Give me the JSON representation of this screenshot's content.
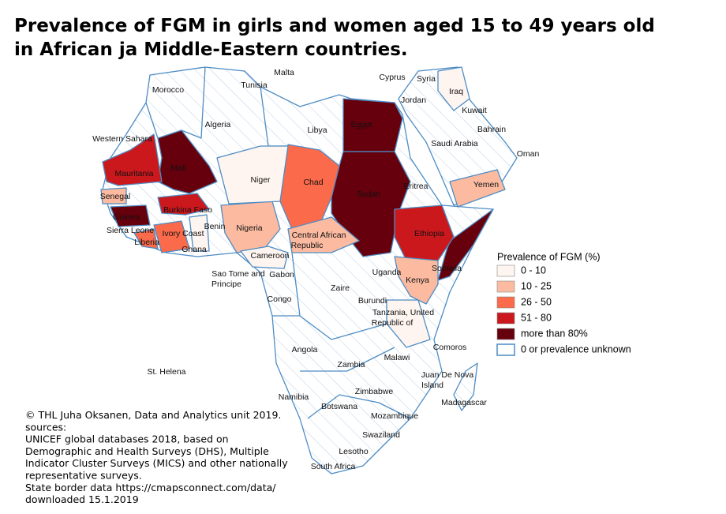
{
  "title": [
    "Prevalence of FGM in girls and women aged 15 to 49  years old",
    "in African  ja Middle-Eastern countries."
  ],
  "labels": [
    "Malta",
    "Tunisia",
    "Morocco",
    "Algeria",
    "Libya",
    "Cyprus",
    "Syria",
    "Iraq",
    "Jordan",
    "Kuwait",
    "Egypt",
    "Bahrain",
    "Saudi Arabia",
    "Western Sahara",
    "Oman",
    "Mali",
    "Mauritania",
    "Niger",
    "Chad",
    "Yemen",
    "Eritrea",
    "Sudan",
    "Senegal",
    "Burkina Faso",
    "Guinea",
    "Benin",
    "Nigeria",
    "Sierra Leone",
    "Ivory Coast",
    "Ethiopia",
    "Central African",
    "Republic",
    "Liberia",
    "Ghana",
    "Cameroon",
    "Sao Tome and",
    "Principe",
    "Gabon",
    "Uganda",
    "Somalia",
    "Kenya",
    "Zaire",
    "Congo",
    "Burundi",
    "Tanzania, United",
    "Republic of",
    "Comoros",
    "Angola",
    "Malawi",
    "Zambia",
    "St. Helena",
    "Juan De Nova",
    "Island",
    "Zimbabwe",
    "Namibia",
    "Madagascar",
    "Botswana",
    "Mozambique",
    "Swaziland",
    "Lesotho",
    "South Africa"
  ],
  "legend": {
    "title": "Prevalence of  FGM (%)",
    "items": [
      {
        "label": "0 - 10",
        "color": "#fff5f0"
      },
      {
        "label": "10 - 25",
        "color": "#fcbba1"
      },
      {
        "label": "26 - 50",
        "color": "#fb6a4a"
      },
      {
        "label": "51 - 80",
        "color": "#cb181d"
      },
      {
        "label": "more than 80%",
        "color": "#67000d"
      },
      {
        "label": "0 or prevalence unknown",
        "color": "#ffffff"
      }
    ]
  },
  "credits": [
    "© THL Juha Oksanen, Data and Analytics unit 2019.",
    "sources:",
    "UNICEF global databases 2018, based on",
    "Demographic and Health Surveys (DHS), Multiple",
    "Indicator Cluster Surveys (MICS) and other nationally",
    "representative surveys.",
    "State border data https://cmapsconnect.com/data/",
    "downloaded 15.1.2019"
  ]
}
